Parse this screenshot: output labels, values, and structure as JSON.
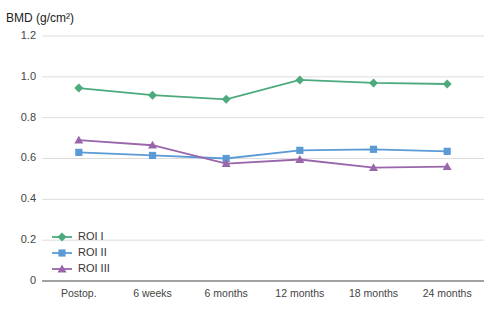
{
  "chart_data": {
    "type": "line",
    "y_label": "BMD (g/cm²)",
    "categories": [
      "Postop.",
      "6 weeks",
      "6 months",
      "12 months",
      "18 months",
      "24 months"
    ],
    "series": [
      {
        "name": "ROI I",
        "color": "#4daa7d",
        "marker": "diamond",
        "values": [
          0.945,
          0.91,
          0.89,
          0.985,
          0.97,
          0.965
        ]
      },
      {
        "name": "ROI II",
        "color": "#5b9bd5",
        "marker": "square",
        "values": [
          0.63,
          0.615,
          0.6,
          0.64,
          0.645,
          0.635
        ]
      },
      {
        "name": "ROI III",
        "color": "#9966aa",
        "marker": "triangle",
        "values": [
          0.69,
          0.665,
          0.575,
          0.595,
          0.555,
          0.56
        ]
      }
    ],
    "ylim": [
      0,
      1.2
    ],
    "yticks": [
      0,
      0.2,
      0.4,
      0.6,
      0.8,
      {
        "value": 1.0,
        "label": "1.0"
      },
      1.2
    ],
    "grid": true,
    "legend": "lower left"
  }
}
